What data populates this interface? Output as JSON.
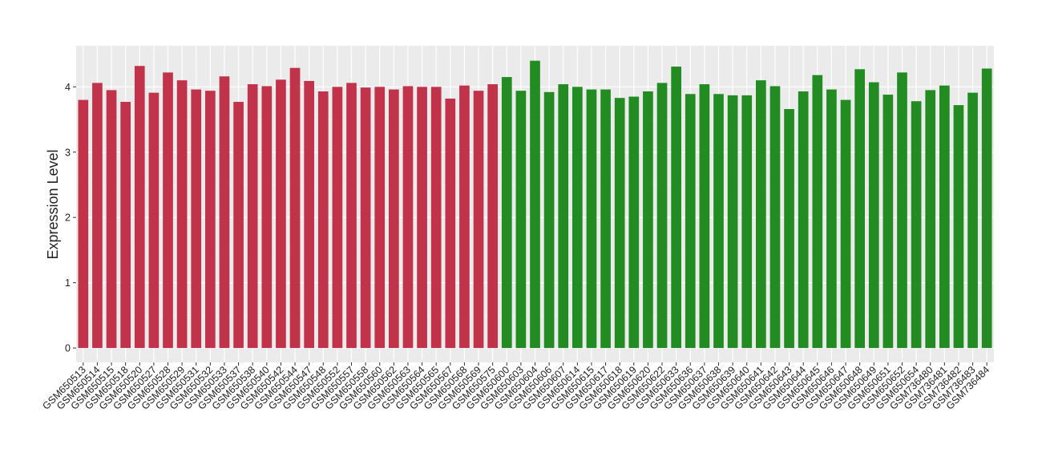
{
  "chart_data": {
    "type": "bar",
    "y_label": "Expression Level",
    "categories": [
      "GSM650513",
      "GSM650514",
      "GSM650515",
      "GSM650518",
      "GSM650520",
      "GSM650527",
      "GSM650528",
      "GSM650529",
      "GSM650531",
      "GSM650532",
      "GSM650533",
      "GSM650537",
      "GSM650538",
      "GSM650540",
      "GSM650542",
      "GSM650544",
      "GSM650547",
      "GSM650548",
      "GSM650552",
      "GSM650557",
      "GSM650558",
      "GSM650560",
      "GSM650562",
      "GSM650563",
      "GSM650564",
      "GSM650565",
      "GSM650567",
      "GSM650568",
      "GSM650569",
      "GSM650575",
      "GSM650600",
      "GSM650603",
      "GSM650604",
      "GSM650606",
      "GSM650607",
      "GSM650614",
      "GSM650615",
      "GSM650617",
      "GSM650618",
      "GSM650619",
      "GSM650620",
      "GSM650622",
      "GSM650633",
      "GSM650636",
      "GSM650637",
      "GSM650638",
      "GSM650639",
      "GSM650640",
      "GSM650641",
      "GSM650642",
      "GSM650643",
      "GSM650644",
      "GSM650645",
      "GSM650646",
      "GSM650647",
      "GSM650648",
      "GSM650649",
      "GSM650651",
      "GSM650652",
      "GSM650654",
      "GSM736480",
      "GSM736481",
      "GSM736482",
      "GSM736483",
      "GSM736484"
    ],
    "values": [
      3.8,
      4.06,
      3.95,
      3.77,
      4.32,
      3.91,
      4.22,
      4.1,
      3.96,
      3.94,
      4.16,
      3.77,
      4.04,
      4.01,
      4.11,
      4.29,
      4.09,
      3.93,
      4.0,
      4.06,
      3.99,
      4.0,
      3.96,
      4.01,
      4.0,
      4.0,
      3.82,
      4.02,
      3.94,
      4.04,
      4.15,
      3.94,
      4.4,
      3.92,
      4.04,
      4.0,
      3.96,
      3.96,
      3.83,
      3.85,
      3.93,
      4.06,
      4.31,
      3.89,
      4.04,
      3.89,
      3.87,
      3.87,
      4.1,
      4.01,
      3.66,
      3.93,
      4.18,
      3.96,
      3.8,
      4.27,
      4.07,
      3.88,
      4.22,
      3.78,
      3.95,
      4.02,
      3.72,
      3.91,
      4.28
    ],
    "colors": [
      "#c0334b",
      "#c0334b",
      "#c0334b",
      "#c0334b",
      "#c0334b",
      "#c0334b",
      "#c0334b",
      "#c0334b",
      "#c0334b",
      "#c0334b",
      "#c0334b",
      "#c0334b",
      "#c0334b",
      "#c0334b",
      "#c0334b",
      "#c0334b",
      "#c0334b",
      "#c0334b",
      "#c0334b",
      "#c0334b",
      "#c0334b",
      "#c0334b",
      "#c0334b",
      "#c0334b",
      "#c0334b",
      "#c0334b",
      "#c0334b",
      "#c0334b",
      "#c0334b",
      "#c0334b",
      "#228b22",
      "#228b22",
      "#228b22",
      "#228b22",
      "#228b22",
      "#228b22",
      "#228b22",
      "#228b22",
      "#228b22",
      "#228b22",
      "#228b22",
      "#228b22",
      "#228b22",
      "#228b22",
      "#228b22",
      "#228b22",
      "#228b22",
      "#228b22",
      "#228b22",
      "#228b22",
      "#228b22",
      "#228b22",
      "#228b22",
      "#228b22",
      "#228b22",
      "#228b22",
      "#228b22",
      "#228b22",
      "#228b22",
      "#228b22",
      "#228b22",
      "#228b22",
      "#228b22",
      "#228b22",
      "#228b22"
    ],
    "ylim": [
      -0.22,
      4.63
    ],
    "yticks": [
      0,
      1,
      2,
      3,
      4
    ],
    "grid": true
  }
}
